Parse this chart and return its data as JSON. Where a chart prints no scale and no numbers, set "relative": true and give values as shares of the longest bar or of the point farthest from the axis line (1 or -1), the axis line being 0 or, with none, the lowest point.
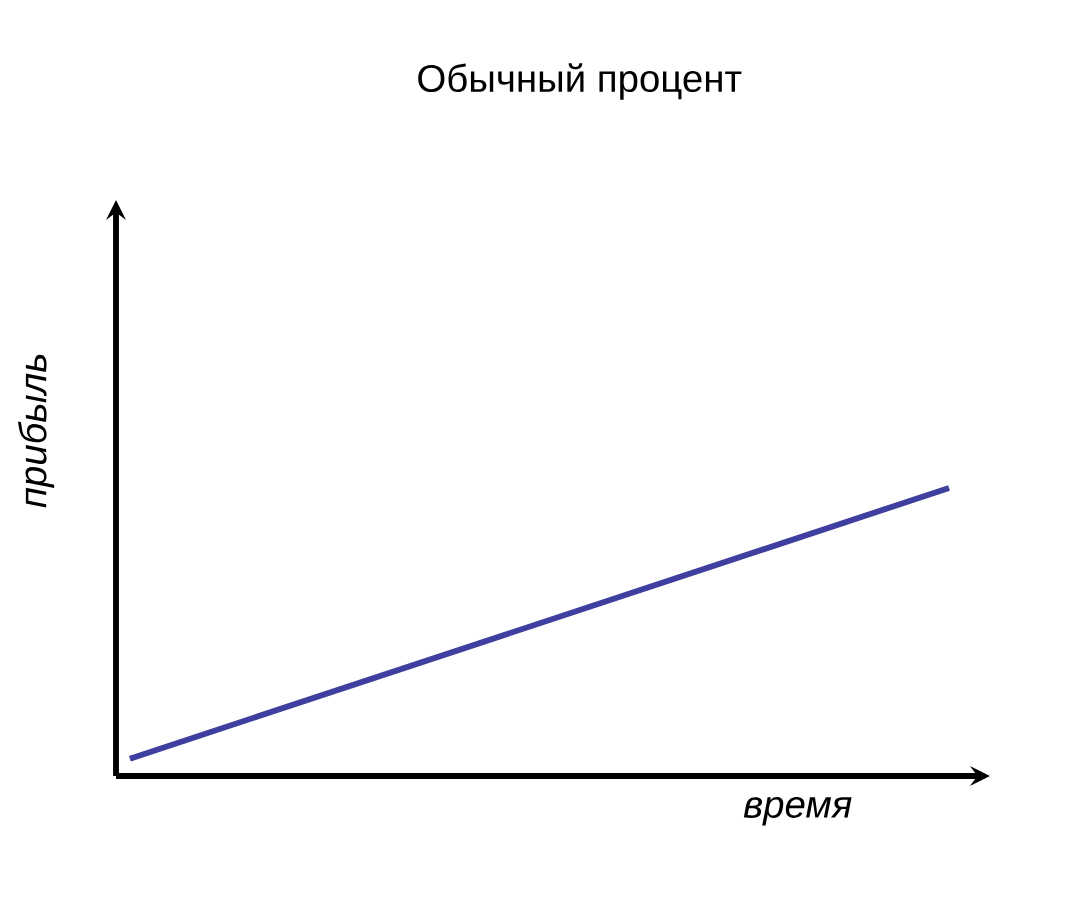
{
  "chart_data": {
    "type": "line",
    "title": "Обычный процент",
    "xlabel": "время",
    "ylabel": "прибыль",
    "relative": true,
    "categories": [
      null,
      null
    ],
    "series": [
      {
        "color": "#3f3f9f",
        "values": [
          0.06,
          1
        ]
      }
    ]
  }
}
